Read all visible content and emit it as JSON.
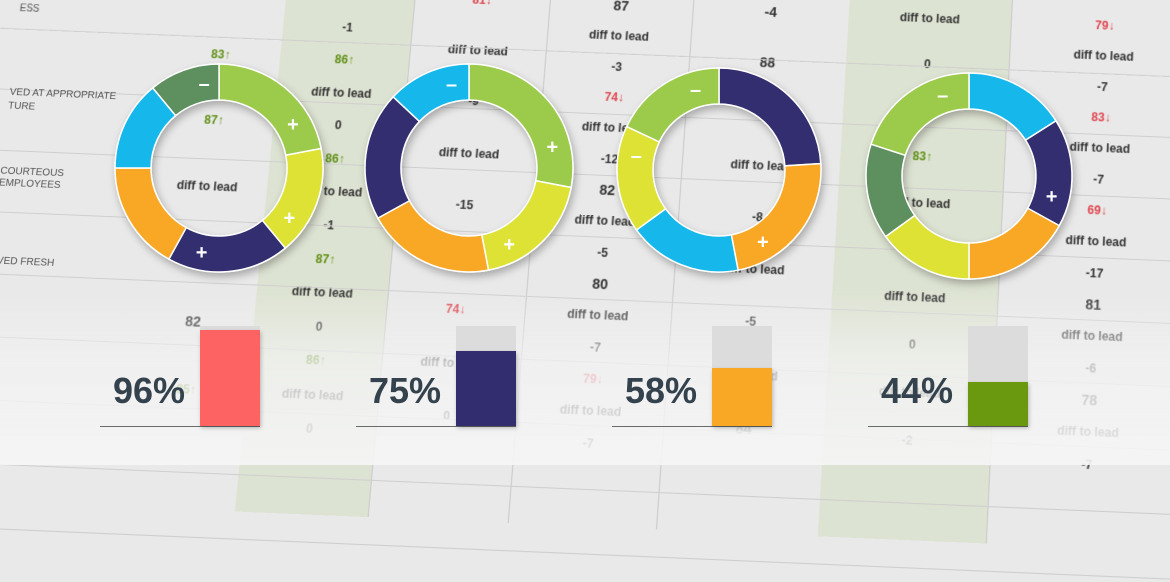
{
  "row_labels": [
    "ess",
    "ved at appropriate",
    "ture",
    "courteous employees",
    "rved fresh"
  ],
  "columns": [
    {
      "cells": [
        "0",
        "83↑",
        "87↑",
        "diff to lead",
        "0",
        "82",
        "85↑"
      ],
      "styles": [
        "big",
        "green",
        "green",
        "",
        "",
        "big",
        "green"
      ]
    },
    {
      "cells": [
        "diff to lead",
        "-1",
        "86↑",
        "diff to lead",
        "0",
        "86↑",
        "diff to lead",
        "-1",
        "87↑",
        "diff to lead",
        "0",
        "86↑",
        "diff to lead",
        "0"
      ],
      "styles": [
        "",
        "",
        "green",
        "",
        "",
        "green",
        "",
        "",
        "green",
        "",
        "",
        "green",
        "",
        ""
      ]
    },
    {
      "cells": [
        "81↓",
        "diff to lead",
        "-9",
        "diff to lead",
        "-15",
        "79↓",
        "74↓",
        "diff to lead",
        "0"
      ],
      "styles": [
        "red",
        "",
        "",
        "",
        "",
        "red",
        "red",
        "",
        ""
      ]
    },
    {
      "cells": [
        "87",
        "diff to lead",
        "-3",
        "74↓",
        "diff to lead",
        "-12",
        "82",
        "diff to lead",
        "-5",
        "80",
        "diff to lead",
        "-7",
        "79↓",
        "diff to lead",
        "-7"
      ],
      "styles": [
        "big",
        "",
        "",
        "red",
        "",
        "",
        "big",
        "",
        "",
        "big",
        "",
        "",
        "red",
        "",
        ""
      ]
    },
    {
      "cells": [
        "-4",
        "88",
        "78",
        "diff to lead",
        "-8",
        "diff to lead",
        "-5",
        "diff to lead",
        "84"
      ],
      "styles": [
        "big",
        "big",
        "big",
        "",
        "",
        "",
        "",
        "",
        "big"
      ]
    },
    {
      "cells": [
        "diff to lead",
        "0",
        "90↑",
        "83↑",
        "diff to lead",
        "87↑",
        "diff to lead",
        "0",
        "diff to lead",
        "-2"
      ],
      "styles": [
        "",
        "",
        "green",
        "green",
        "",
        "green",
        "",
        "",
        "",
        ""
      ]
    },
    {
      "cells": [
        "79↓",
        "diff to lead",
        "-7",
        "83↓",
        "diff to lead",
        "-7",
        "69↓",
        "diff to lead",
        "-17",
        "81",
        "diff to lead",
        "-6",
        "78",
        "diff to lead",
        "-7"
      ],
      "styles": [
        "red",
        "",
        "",
        "red",
        "",
        "",
        "red",
        "",
        "",
        "big",
        "",
        "",
        "big",
        "",
        ""
      ]
    }
  ],
  "colors": {
    "green_light": "#9ccb4c",
    "yellow": "#dde236",
    "navy": "#322d6f",
    "orange": "#f9a825",
    "cyan": "#13b8ec",
    "green_dark": "#5d8f5e",
    "salmon": "#fd6363",
    "olive": "#6a980f",
    "bar_bg": "#dcdcdc"
  },
  "donuts": [
    {
      "segments": [
        {
          "color": "green_light",
          "value": 22,
          "sign": "+"
        },
        {
          "color": "yellow",
          "value": 17,
          "sign": "+"
        },
        {
          "color": "navy",
          "value": 19,
          "sign": "+"
        },
        {
          "color": "orange",
          "value": 17,
          "sign": ""
        },
        {
          "color": "cyan",
          "value": 14,
          "sign": ""
        },
        {
          "color": "green_dark",
          "value": 11,
          "sign": "-"
        }
      ]
    },
    {
      "segments": [
        {
          "color": "green_light",
          "value": 28,
          "sign": "+"
        },
        {
          "color": "yellow",
          "value": 19,
          "sign": "+"
        },
        {
          "color": "orange",
          "value": 20,
          "sign": ""
        },
        {
          "color": "navy",
          "value": 20,
          "sign": ""
        },
        {
          "color": "cyan",
          "value": 13,
          "sign": "-"
        }
      ]
    },
    {
      "segments": [
        {
          "color": "navy",
          "value": 24,
          "sign": ""
        },
        {
          "color": "orange",
          "value": 23,
          "sign": "+"
        },
        {
          "color": "cyan",
          "value": 18,
          "sign": ""
        },
        {
          "color": "yellow",
          "value": 17,
          "sign": "-"
        },
        {
          "color": "green_light",
          "value": 18,
          "sign": "-"
        }
      ]
    },
    {
      "segments": [
        {
          "color": "cyan",
          "value": 16,
          "sign": ""
        },
        {
          "color": "navy",
          "value": 17,
          "sign": "+"
        },
        {
          "color": "orange",
          "value": 17,
          "sign": ""
        },
        {
          "color": "yellow",
          "value": 15,
          "sign": ""
        },
        {
          "color": "green_dark",
          "value": 15,
          "sign": ""
        },
        {
          "color": "green_light",
          "value": 20,
          "sign": "-"
        }
      ]
    }
  ],
  "bars": [
    {
      "label": "96%",
      "percent": 96,
      "color": "salmon"
    },
    {
      "label": "75%",
      "percent": 75,
      "color": "navy"
    },
    {
      "label": "58%",
      "percent": 58,
      "color": "orange"
    },
    {
      "label": "44%",
      "percent": 44,
      "color": "olive"
    }
  ]
}
